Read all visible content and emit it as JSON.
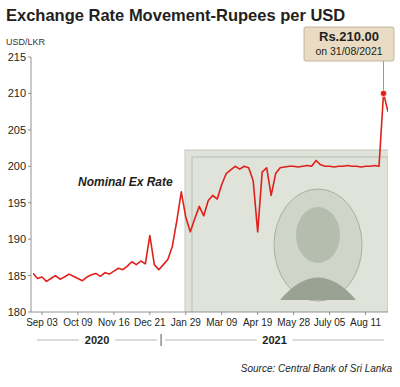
{
  "chart_data": {
    "type": "line",
    "title": "Exchange Rate Movement-Rupees per USD",
    "y_label": "USD/LKR",
    "source": "Source: Central Bank of Sri Lanka",
    "categories": [
      null,
      null,
      "Sep 03",
      null,
      null,
      null,
      null,
      null,
      null,
      null,
      "Oct 09",
      null,
      null,
      null,
      null,
      null,
      null,
      null,
      "Nov 16",
      null,
      null,
      null,
      null,
      null,
      null,
      null,
      "Dec 21",
      null,
      null,
      null,
      null,
      null,
      null,
      null,
      "Jan 29",
      null,
      null,
      null,
      null,
      null,
      null,
      null,
      "Mar 09",
      null,
      null,
      null,
      null,
      null,
      null,
      null,
      "Apr 19",
      null,
      null,
      null,
      null,
      null,
      null,
      null,
      "May 28",
      null,
      null,
      null,
      null,
      null,
      null,
      null,
      "July 05",
      null,
      null,
      null,
      null,
      null,
      null,
      null,
      "Aug 11",
      null,
      null,
      null,
      null,
      null
    ],
    "x_groups": [
      {
        "label": "2020",
        "count": 29
      },
      {
        "label": "2021",
        "count": 51
      }
    ],
    "series": [
      {
        "name": "Nominal Ex Rate",
        "color": "#e0201b",
        "values": [
          185.3,
          184.6,
          184.8,
          184.2,
          184.6,
          185.0,
          184.5,
          184.8,
          185.2,
          184.9,
          184.6,
          184.3,
          184.8,
          185.1,
          185.3,
          184.9,
          185.4,
          185.2,
          185.6,
          186.0,
          185.8,
          186.3,
          186.9,
          186.5,
          187.0,
          186.6,
          190.5,
          186.5,
          185.8,
          186.5,
          187.2,
          189.0,
          192.5,
          196.5,
          193.0,
          191.0,
          192.8,
          194.5,
          193.2,
          195.3,
          196.0,
          195.5,
          197.5,
          199.0,
          199.5,
          200.0,
          199.6,
          200.0,
          199.8,
          198.0,
          191.0,
          199.2,
          199.8,
          196.0,
          199.0,
          199.8,
          199.9,
          200.0,
          200.0,
          199.9,
          200.0,
          200.1,
          200.0,
          200.8,
          200.2,
          200.0,
          200.0,
          199.9,
          200.0,
          200.0,
          200.1,
          200.0,
          200.0,
          199.9,
          200.0,
          200.0,
          200.1,
          200.0,
          210.0,
          207.5
        ]
      }
    ],
    "annotations": [
      {
        "text": [
          "Rs.210.00",
          "on 31/08/2021"
        ],
        "value": 210
      }
    ],
    "ylim": [
      180,
      215
    ],
    "yticks": [
      180,
      185,
      190,
      195,
      200,
      205,
      210,
      215
    ],
    "grid": false
  }
}
